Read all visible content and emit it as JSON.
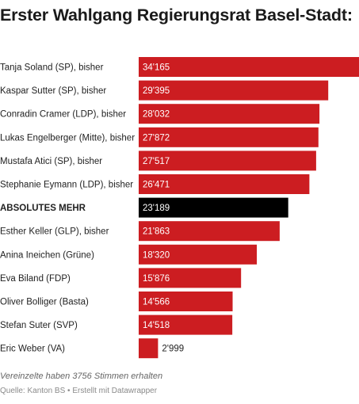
{
  "title": "Erster Wahlgang Regierungsrat Basel-Stadt:",
  "chart_data": {
    "type": "bar",
    "orientation": "horizontal",
    "title": "Erster Wahlgang Regierungsrat Basel-Stadt:",
    "categories": [
      "Tanja Soland (SP), bisher",
      "Kaspar Sutter (SP), bisher",
      "Conradin Cramer (LDP), bisher",
      "Lukas Engelberger (Mitte), bisher",
      "Mustafa Atici (SP), bisher",
      "Stephanie Eymann (LDP), bisher",
      "ABSOLUTES MEHR",
      "Esther Keller (GLP), bisher",
      "Anina Ineichen (Grüne)",
      "Eva Biland (FDP)",
      "Oliver Bolliger (Basta)",
      "Stefan Suter (SVP)",
      "Eric Weber (VA)"
    ],
    "values": [
      34165,
      29395,
      28032,
      27872,
      27517,
      26471,
      23189,
      21863,
      18320,
      15876,
      14566,
      14518,
      2999
    ],
    "value_labels": [
      "34'165",
      "29'395",
      "28'032",
      "27'872",
      "27'517",
      "26'471",
      "23'189",
      "21'863",
      "18'320",
      "15'876",
      "14'566",
      "14'518",
      "2'999"
    ],
    "highlight_category": "ABSOLUTES MEHR",
    "colors": {
      "bar": "#cc1d21",
      "highlight": "#000000",
      "label_inside": "#ffffff",
      "label_outside": "#222222"
    },
    "xlim": [
      0,
      34165
    ],
    "grid": false,
    "legend": "none"
  },
  "footer": {
    "note": "Vereinzelte haben 3756 Stimmen erhalten",
    "source": "Quelle: Kanton BS • Erstellt mit Datawrapper"
  }
}
